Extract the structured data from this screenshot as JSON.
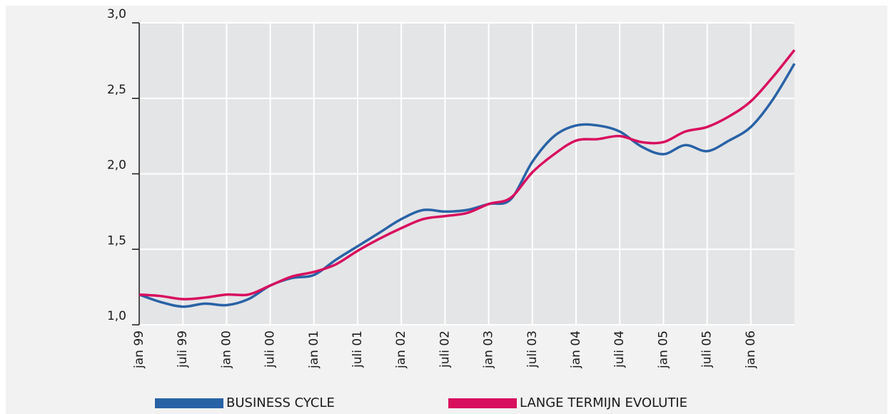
{
  "chart_data": {
    "type": "line",
    "categories": [
      "jan 99",
      null,
      "juli 99",
      null,
      "jan 00",
      null,
      "juli 00",
      null,
      "jan 01",
      null,
      "juli 01",
      null,
      "jan 02",
      null,
      "juli 02",
      null,
      "jan 03",
      null,
      "juli 03",
      null,
      "jan 04",
      null,
      "juli 04",
      null,
      "jan 05",
      null,
      "juli 05",
      null,
      "jan 06",
      null,
      null
    ],
    "series": [
      {
        "name": "BUSINESS CYCLE",
        "color": "#2862a6",
        "values": [
          1.2,
          1.15,
          1.12,
          1.14,
          1.13,
          1.17,
          1.26,
          1.31,
          1.33,
          1.43,
          1.52,
          1.61,
          1.7,
          1.76,
          1.75,
          1.76,
          1.8,
          1.83,
          2.08,
          2.25,
          2.32,
          2.32,
          2.28,
          2.18,
          2.13,
          2.19,
          2.15,
          2.22,
          2.31,
          2.49,
          2.73
        ]
      },
      {
        "name": "LANGE TERMIJN EVOLUTIE",
        "color": "#d80f5e",
        "values": [
          1.2,
          1.19,
          1.17,
          1.18,
          1.2,
          1.2,
          1.26,
          1.32,
          1.35,
          1.4,
          1.49,
          1.57,
          1.64,
          1.7,
          1.72,
          1.74,
          1.8,
          1.84,
          2.01,
          2.13,
          2.22,
          2.23,
          2.25,
          2.21,
          2.21,
          2.28,
          2.31,
          2.38,
          2.48,
          2.64,
          2.82
        ]
      }
    ],
    "ylim": [
      1,
      3
    ],
    "yticks": [
      {
        "value": 1,
        "label": "1,0"
      },
      {
        "value": 1.5,
        "label": "1,5"
      },
      {
        "value": 2,
        "label": "2,0"
      },
      {
        "value": 2.5,
        "label": "2,5"
      },
      {
        "value": 3,
        "label": "3,0"
      }
    ],
    "grid": true
  }
}
